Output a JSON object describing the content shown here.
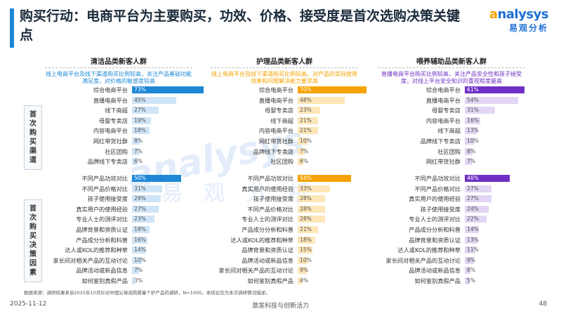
{
  "title": "购买行动：电商平台为主要购买，功效、价格、接受度是首次选购决策关键点",
  "logo": {
    "text_en": "nalysys",
    "text_en_mark": "a",
    "text_cn": "易观分析"
  },
  "section_labels": {
    "channel": [
      "首",
      "次",
      "购",
      "买",
      "渠",
      "道"
    ],
    "factor": [
      "首",
      "次",
      "购",
      "买",
      "决",
      "策",
      "因",
      "素"
    ]
  },
  "colors": {
    "blue": "#1e88d6",
    "blue_light": "#cfe4f6",
    "orange": "#f5a300",
    "orange_light": "#fde6b8",
    "purple": "#6f2fc6",
    "purple_light": "#e2d6f4"
  },
  "panels": [
    {
      "title": "清洁品类新客人群",
      "note": "线上电商平台及线下渠道购买比例较高，关注产品基础功能满足度，对价格的敏感度较高",
      "note_color": "#1e88d6",
      "accent": "#1e88d6",
      "light": "#cfe4f6",
      "channels": [
        {
          "label": "综合电商平台",
          "value": "73%"
        },
        {
          "label": "直播电商平台",
          "value": "45%"
        },
        {
          "label": "线下商超",
          "value": "27%"
        },
        {
          "label": "母婴专卖店",
          "value": "19%"
        },
        {
          "label": "内容电商平台",
          "value": "18%"
        },
        {
          "label": "网红带货社群",
          "value": "8%"
        },
        {
          "label": "社区团购",
          "value": "7%"
        },
        {
          "label": "品牌线下专卖店",
          "value": "6%"
        }
      ],
      "factors": [
        {
          "label": "不同产品功效对比",
          "value": "50%"
        },
        {
          "label": "不同产品价格对比",
          "value": "31%"
        },
        {
          "label": "孩子使用接受度",
          "value": "29%"
        },
        {
          "label": "真实用户的使用经验",
          "value": "27%"
        },
        {
          "label": "专业人士的测评对比",
          "value": "23%"
        },
        {
          "label": "品牌背景和资质认证",
          "value": "18%"
        },
        {
          "label": "产品成分分析和科普",
          "value": "16%"
        },
        {
          "label": "达人或KOL的推荐和种草",
          "value": "14%"
        },
        {
          "label": "家长间对相关产品的互动讨论",
          "value": "10%"
        },
        {
          "label": "品牌活动或新品信息",
          "value": "7%"
        },
        {
          "label": "如何鉴别真假产品",
          "value": "3%"
        }
      ]
    },
    {
      "title": "护理品类新客人群",
      "note": "线上电商平台及线下渠道购买比例较高，对产品的实际使用效果和问题解决能力要求高",
      "note_color": "#f5a300",
      "accent": "#f5a300",
      "light": "#fde6b8",
      "channels": [
        {
          "label": "综合电商平台",
          "value": "70%"
        },
        {
          "label": "直播电商平台",
          "value": "48%"
        },
        {
          "label": "母婴专卖店",
          "value": "23%"
        },
        {
          "label": "线下商超",
          "value": "21%"
        },
        {
          "label": "内容电商平台",
          "value": "21%"
        },
        {
          "label": "网红带货社群",
          "value": "10%"
        },
        {
          "label": "品牌线下专卖店",
          "value": "7%"
        },
        {
          "label": "社区团购",
          "value": "6%"
        }
      ],
      "factors": [
        {
          "label": "不同产品功效对比",
          "value": "54%"
        },
        {
          "label": "真实用户的使用经验",
          "value": "33%"
        },
        {
          "label": "孩子使用接受度",
          "value": "28%"
        },
        {
          "label": "不同产品价格对比",
          "value": "28%"
        },
        {
          "label": "专业人士的测评对比",
          "value": "28%"
        },
        {
          "label": "产品成分分析和科普",
          "value": "21%"
        },
        {
          "label": "达人或KOL的推荐和种草",
          "value": "18%"
        },
        {
          "label": "品牌背景和资质认证",
          "value": "15%"
        },
        {
          "label": "品牌活动或新品信息",
          "value": "10%"
        },
        {
          "label": "家长间对相关产品的互动讨论",
          "value": "9%"
        },
        {
          "label": "如何鉴别真假产品",
          "value": "4%"
        }
      ]
    },
    {
      "title": "喂养辅助品类新客人群",
      "note": "直播电商平台购买比例较高，关注产品安全性和孩子接受度，对线上平台安全知识的重视程度最高",
      "note_color": "#6f2fc6",
      "accent": "#6f2fc6",
      "light": "#e2d6f4",
      "channels": [
        {
          "label": "综合电商平台",
          "value": "61%"
        },
        {
          "label": "直播电商平台",
          "value": "54%"
        },
        {
          "label": "母婴专卖店",
          "value": "31%"
        },
        {
          "label": "内容电商平台",
          "value": "16%"
        },
        {
          "label": "线下商超",
          "value": "13%"
        },
        {
          "label": "品牌线下专卖店",
          "value": "10%"
        },
        {
          "label": "社区团购",
          "value": "8%"
        },
        {
          "label": "网红带货社群",
          "value": "7%"
        }
      ],
      "factors": [
        {
          "label": "不同产品功效对比",
          "value": "46%"
        },
        {
          "label": "不同产品价格对比",
          "value": "27%"
        },
        {
          "label": "真实用户的使用经验",
          "value": "27%"
        },
        {
          "label": "孩子使用接受度",
          "value": "24%"
        },
        {
          "label": "专业人士的测评对比",
          "value": "22%"
        },
        {
          "label": "产品成分分析和科普",
          "value": "14%"
        },
        {
          "label": "品牌背景和资质认证",
          "value": "13%"
        },
        {
          "label": "达人或KOL的推荐和种草",
          "value": "11%"
        },
        {
          "label": "家长间对相关产品的互动讨论",
          "value": "9%"
        },
        {
          "label": "品牌活动或新品信息",
          "value": "6%"
        },
        {
          "label": "如何鉴别真假产品",
          "value": "5%"
        }
      ]
    }
  ],
  "chart_data": {
    "type": "bar",
    "groups": [
      "首次购买渠道",
      "首次购买决策因素"
    ],
    "series": [
      {
        "name": "清洁品类新客人群",
        "channels": {
          "categories": [
            "综合电商平台",
            "直播电商平台",
            "线下商超",
            "母婴专卖店",
            "内容电商平台",
            "网红带货社群",
            "社区团购",
            "品牌线下专卖店"
          ],
          "values": [
            73,
            45,
            27,
            19,
            18,
            8,
            7,
            6
          ]
        },
        "factors": {
          "categories": [
            "不同产品功效对比",
            "不同产品价格对比",
            "孩子使用接受度",
            "真实用户的使用经验",
            "专业人士的测评对比",
            "品牌背景和资质认证",
            "产品成分分析和科普",
            "达人或KOL的推荐和种草",
            "家长间对相关产品的互动讨论",
            "品牌活动或新品信息",
            "如何鉴别真假产品"
          ],
          "values": [
            50,
            31,
            29,
            27,
            23,
            18,
            16,
            14,
            10,
            7,
            3
          ]
        }
      },
      {
        "name": "护理品类新客人群",
        "channels": {
          "categories": [
            "综合电商平台",
            "直播电商平台",
            "母婴专卖店",
            "线下商超",
            "内容电商平台",
            "网红带货社群",
            "品牌线下专卖店",
            "社区团购"
          ],
          "values": [
            70,
            48,
            23,
            21,
            21,
            10,
            7,
            6
          ]
        },
        "factors": {
          "categories": [
            "不同产品功效对比",
            "真实用户的使用经验",
            "孩子使用接受度",
            "不同产品价格对比",
            "专业人士的测评对比",
            "产品成分分析和科普",
            "达人或KOL的推荐和种草",
            "品牌背景和资质认证",
            "品牌活动或新品信息",
            "家长间对相关产品的互动讨论",
            "如何鉴别真假产品"
          ],
          "values": [
            54,
            33,
            28,
            28,
            28,
            21,
            18,
            15,
            10,
            9,
            4
          ]
        }
      },
      {
        "name": "喂养辅助品类新客人群",
        "channels": {
          "categories": [
            "综合电商平台",
            "直播电商平台",
            "母婴专卖店",
            "内容电商平台",
            "线下商超",
            "品牌线下专卖店",
            "社区团购",
            "网红带货社群"
          ],
          "values": [
            61,
            54,
            31,
            16,
            13,
            10,
            8,
            7
          ]
        },
        "factors": {
          "categories": [
            "不同产品功效对比",
            "不同产品价格对比",
            "真实用户的使用经验",
            "孩子使用接受度",
            "专业人士的测评对比",
            "产品成分分析和科普",
            "品牌背景和资质认证",
            "达人或KOL的推荐和种草",
            "家长间对相关产品的互动讨论",
            "品牌活动或新品信息",
            "如何鉴别真假产品"
          ],
          "values": [
            46,
            27,
            27,
            24,
            22,
            14,
            13,
            11,
            9,
            6,
            5
          ]
        }
      }
    ],
    "value_unit": "%"
  },
  "footnote": "数据来源：调研结果来自2025年10月针对中国父母选购婴童个护产品的调研，N=1000。本结论仅为本次调研情况描述。",
  "footer": {
    "date": "2025-11-12",
    "slogan": "激发科技与创新活力",
    "page": "48"
  }
}
